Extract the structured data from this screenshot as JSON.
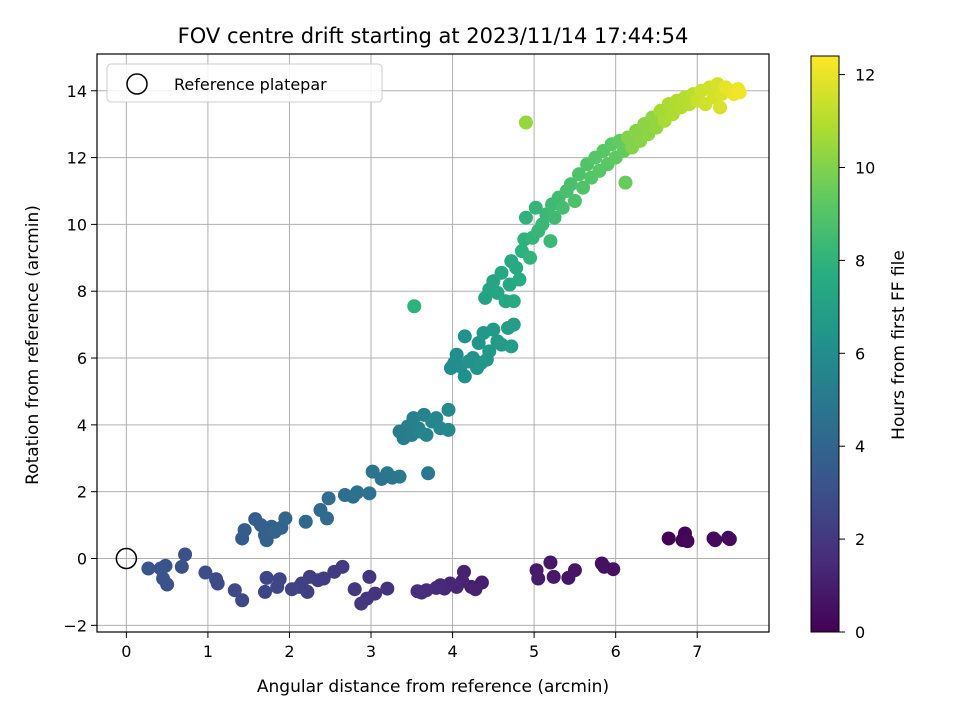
{
  "chart_data": {
    "type": "scatter",
    "title": "FOV centre drift starting at 2023/11/14 17:44:54",
    "xlabel": "Angular distance from reference (arcmin)",
    "ylabel": "Rotation from reference (arcmin)",
    "xlim": [
      -0.36,
      7.88
    ],
    "ylim": [
      -2.2,
      15.1
    ],
    "xticks": [
      0,
      1,
      2,
      3,
      4,
      5,
      6,
      7
    ],
    "yticks": [
      -2,
      0,
      2,
      4,
      6,
      8,
      10,
      12,
      14
    ],
    "grid": true,
    "legend": {
      "placement": "top-left",
      "entries": [
        "Reference platepar"
      ]
    },
    "reference_point": {
      "x": 0,
      "y": 0
    },
    "colorbar": {
      "label": "Hours from first FF file",
      "colormap": "viridis",
      "range": [
        0,
        12.4
      ],
      "ticks": [
        0,
        2,
        4,
        6,
        8,
        10,
        12
      ]
    },
    "marker_color": "#000000",
    "points": [
      [
        6.65,
        0.6,
        0.05
      ],
      [
        6.85,
        0.75,
        0.1
      ],
      [
        6.82,
        0.55,
        0.15
      ],
      [
        6.88,
        0.52,
        0.2
      ],
      [
        7.2,
        0.6,
        0.25
      ],
      [
        7.22,
        0.55,
        0.3
      ],
      [
        7.38,
        0.62,
        0.35
      ],
      [
        7.4,
        0.58,
        0.4
      ],
      [
        5.83,
        -0.15,
        0.5
      ],
      [
        5.86,
        -0.25,
        0.55
      ],
      [
        5.97,
        -0.32,
        0.6
      ],
      [
        5.5,
        -0.35,
        0.7
      ],
      [
        5.42,
        -0.58,
        0.75
      ],
      [
        5.2,
        -0.12,
        0.8
      ],
      [
        5.24,
        -0.55,
        0.85
      ],
      [
        5.03,
        -0.35,
        0.9
      ],
      [
        5.05,
        -0.6,
        0.95
      ],
      [
        4.36,
        -0.72,
        1.05
      ],
      [
        4.23,
        -0.85,
        1.1
      ],
      [
        4.28,
        -0.92,
        1.15
      ],
      [
        4.14,
        -0.4,
        1.2
      ],
      [
        4.12,
        -0.68,
        1.25
      ],
      [
        4.05,
        -0.85,
        1.3
      ],
      [
        3.97,
        -0.75,
        1.35
      ],
      [
        3.9,
        -0.9,
        1.4
      ],
      [
        3.85,
        -0.8,
        1.45
      ],
      [
        3.8,
        -0.88,
        1.5
      ],
      [
        3.68,
        -0.95,
        1.55
      ],
      [
        3.62,
        -1.02,
        1.6
      ],
      [
        3.57,
        -0.98,
        1.65
      ],
      [
        3.2,
        -0.9,
        1.75
      ],
      [
        3.05,
        -1.05,
        1.8
      ],
      [
        2.98,
        -0.55,
        1.85
      ],
      [
        2.95,
        -1.2,
        1.9
      ],
      [
        2.88,
        -1.35,
        1.95
      ],
      [
        2.8,
        -0.92,
        2.0
      ],
      [
        2.65,
        -0.25,
        2.05
      ],
      [
        2.55,
        -0.4,
        2.1
      ],
      [
        2.42,
        -0.6,
        2.15
      ],
      [
        2.35,
        -0.65,
        2.2
      ],
      [
        2.25,
        -0.55,
        2.25
      ],
      [
        2.22,
        -1.0,
        2.3
      ],
      [
        2.15,
        -0.75,
        2.35
      ],
      [
        2.12,
        -0.85,
        2.4
      ],
      [
        2.03,
        -0.92,
        2.45
      ],
      [
        1.88,
        -0.62,
        2.5
      ],
      [
        1.85,
        -0.85,
        2.55
      ],
      [
        1.72,
        -0.58,
        2.6
      ],
      [
        1.7,
        -1.0,
        2.65
      ],
      [
        1.42,
        -1.25,
        2.7
      ],
      [
        1.33,
        -0.95,
        2.75
      ],
      [
        1.12,
        -0.75,
        2.8
      ],
      [
        1.1,
        -0.62,
        2.85
      ],
      [
        0.97,
        -0.42,
        2.9
      ],
      [
        0.72,
        0.12,
        3.0
      ],
      [
        0.68,
        -0.25,
        3.05
      ],
      [
        0.5,
        -0.78,
        3.1
      ],
      [
        0.45,
        -0.6,
        3.15
      ],
      [
        0.48,
        -0.22,
        3.2
      ],
      [
        0.42,
        -0.3,
        3.25
      ],
      [
        0.27,
        -0.3,
        3.3
      ],
      [
        1.42,
        0.6,
        3.5
      ],
      [
        1.45,
        0.85,
        3.6
      ],
      [
        1.58,
        1.18,
        3.7
      ],
      [
        1.65,
        1.0,
        3.75
      ],
      [
        1.7,
        0.7,
        3.8
      ],
      [
        1.72,
        0.55,
        3.85
      ],
      [
        1.78,
        0.95,
        3.9
      ],
      [
        1.82,
        0.8,
        3.95
      ],
      [
        1.9,
        0.92,
        4.0
      ],
      [
        1.95,
        1.2,
        4.05
      ],
      [
        2.2,
        1.1,
        4.15
      ],
      [
        2.38,
        1.45,
        4.25
      ],
      [
        2.46,
        1.2,
        4.3
      ],
      [
        2.48,
        1.8,
        4.35
      ],
      [
        2.68,
        1.9,
        4.5
      ],
      [
        2.78,
        1.85,
        4.55
      ],
      [
        2.83,
        1.98,
        4.6
      ],
      [
        2.98,
        1.95,
        4.65
      ],
      [
        3.02,
        2.6,
        4.7
      ],
      [
        3.13,
        2.38,
        4.75
      ],
      [
        3.2,
        2.55,
        4.8
      ],
      [
        3.26,
        2.42,
        4.85
      ],
      [
        3.35,
        2.45,
        4.9
      ],
      [
        3.7,
        2.55,
        4.95
      ],
      [
        3.35,
        3.8,
        5.15
      ],
      [
        3.4,
        3.6,
        5.2
      ],
      [
        3.45,
        3.95,
        5.25
      ],
      [
        3.5,
        3.7,
        5.3
      ],
      [
        3.52,
        4.2,
        5.35
      ],
      [
        3.58,
        3.9,
        5.4
      ],
      [
        3.6,
        3.8,
        5.45
      ],
      [
        3.65,
        4.3,
        5.5
      ],
      [
        3.68,
        3.7,
        5.55
      ],
      [
        3.75,
        4.1,
        5.6
      ],
      [
        3.8,
        4.2,
        5.65
      ],
      [
        3.85,
        3.9,
        5.7
      ],
      [
        3.95,
        3.85,
        5.75
      ],
      [
        3.95,
        4.45,
        5.8
      ],
      [
        3.98,
        5.7,
        5.95
      ],
      [
        4.02,
        5.85,
        6.0
      ],
      [
        4.05,
        6.1,
        6.05
      ],
      [
        4.1,
        5.75,
        6.1
      ],
      [
        4.15,
        5.45,
        6.15
      ],
      [
        4.15,
        6.65,
        6.2
      ],
      [
        4.2,
        5.9,
        6.25
      ],
      [
        4.25,
        6.0,
        6.3
      ],
      [
        4.3,
        5.7,
        6.35
      ],
      [
        4.32,
        6.45,
        6.4
      ],
      [
        4.35,
        5.85,
        6.45
      ],
      [
        4.38,
        6.75,
        6.5
      ],
      [
        4.42,
        5.95,
        6.55
      ],
      [
        4.45,
        6.2,
        6.6
      ],
      [
        4.5,
        6.85,
        6.65
      ],
      [
        4.55,
        6.5,
        6.7
      ],
      [
        4.6,
        6.4,
        6.75
      ],
      [
        4.68,
        6.9,
        6.8
      ],
      [
        4.72,
        6.35,
        6.85
      ],
      [
        4.75,
        7.0,
        6.9
      ],
      [
        4.4,
        7.8,
        7.1
      ],
      [
        4.45,
        8.05,
        7.15
      ],
      [
        4.5,
        8.3,
        7.2
      ],
      [
        4.55,
        7.95,
        7.25
      ],
      [
        4.6,
        8.55,
        7.3
      ],
      [
        4.65,
        7.7,
        7.35
      ],
      [
        4.7,
        8.2,
        7.4
      ],
      [
        4.72,
        8.9,
        7.45
      ],
      [
        4.75,
        7.7,
        7.5
      ],
      [
        4.78,
        8.7,
        7.55
      ],
      [
        4.82,
        8.35,
        7.6
      ],
      [
        3.53,
        7.55,
        7.9
      ],
      [
        4.85,
        9.2,
        7.9
      ],
      [
        4.88,
        9.55,
        7.95
      ],
      [
        4.9,
        10.2,
        8.0
      ],
      [
        4.95,
        9.0,
        8.05
      ],
      [
        4.98,
        9.6,
        8.1
      ],
      [
        5.02,
        10.5,
        8.15
      ],
      [
        5.05,
        9.8,
        8.2
      ],
      [
        5.1,
        10.0,
        8.25
      ],
      [
        5.15,
        10.3,
        8.3
      ],
      [
        5.2,
        9.5,
        8.35
      ],
      [
        5.22,
        10.6,
        8.4
      ],
      [
        5.25,
        10.2,
        8.45
      ],
      [
        5.3,
        10.8,
        8.5
      ],
      [
        5.35,
        10.5,
        8.65
      ],
      [
        5.4,
        11.0,
        8.7
      ],
      [
        5.45,
        11.2,
        8.75
      ],
      [
        5.5,
        10.7,
        8.8
      ],
      [
        5.55,
        11.5,
        8.85
      ],
      [
        5.6,
        11.1,
        8.9
      ],
      [
        5.65,
        11.8,
        8.95
      ],
      [
        5.7,
        11.4,
        9.0
      ],
      [
        5.75,
        12.0,
        9.05
      ],
      [
        5.8,
        11.6,
        9.1
      ],
      [
        5.85,
        12.2,
        9.15
      ],
      [
        5.9,
        11.8,
        9.2
      ],
      [
        5.95,
        12.4,
        9.25
      ],
      [
        6.0,
        12.0,
        9.3
      ],
      [
        6.05,
        12.5,
        9.35
      ],
      [
        6.1,
        12.2,
        9.4
      ],
      [
        6.12,
        11.25,
        9.45
      ],
      [
        6.15,
        12.6,
        10.0
      ],
      [
        6.2,
        12.3,
        10.05
      ],
      [
        6.25,
        12.8,
        10.1
      ],
      [
        6.3,
        12.5,
        10.15
      ],
      [
        6.35,
        13.0,
        10.2
      ],
      [
        6.4,
        12.7,
        10.25
      ],
      [
        6.45,
        13.2,
        10.3
      ],
      [
        6.5,
        12.9,
        10.35
      ],
      [
        4.9,
        13.05,
        10.4
      ],
      [
        6.55,
        13.4,
        10.7
      ],
      [
        6.6,
        13.1,
        10.75
      ],
      [
        6.65,
        13.6,
        10.8
      ],
      [
        6.7,
        13.3,
        10.85
      ],
      [
        6.75,
        13.7,
        10.9
      ],
      [
        6.8,
        13.5,
        10.95
      ],
      [
        6.85,
        13.8,
        11.0
      ],
      [
        6.9,
        13.6,
        11.05
      ],
      [
        6.95,
        13.9,
        11.1
      ],
      [
        7.0,
        13.7,
        11.4
      ],
      [
        7.05,
        14.0,
        11.45
      ],
      [
        7.1,
        13.6,
        11.5
      ],
      [
        7.15,
        14.1,
        11.55
      ],
      [
        7.2,
        13.8,
        11.6
      ],
      [
        7.25,
        14.2,
        11.65
      ],
      [
        7.28,
        13.5,
        11.7
      ],
      [
        7.3,
        13.9,
        11.75
      ],
      [
        7.35,
        14.1,
        11.95
      ],
      [
        7.4,
        14.0,
        12.0
      ],
      [
        7.45,
        13.9,
        12.05
      ],
      [
        7.5,
        14.05,
        12.1
      ],
      [
        7.52,
        13.95,
        12.15
      ]
    ]
  }
}
